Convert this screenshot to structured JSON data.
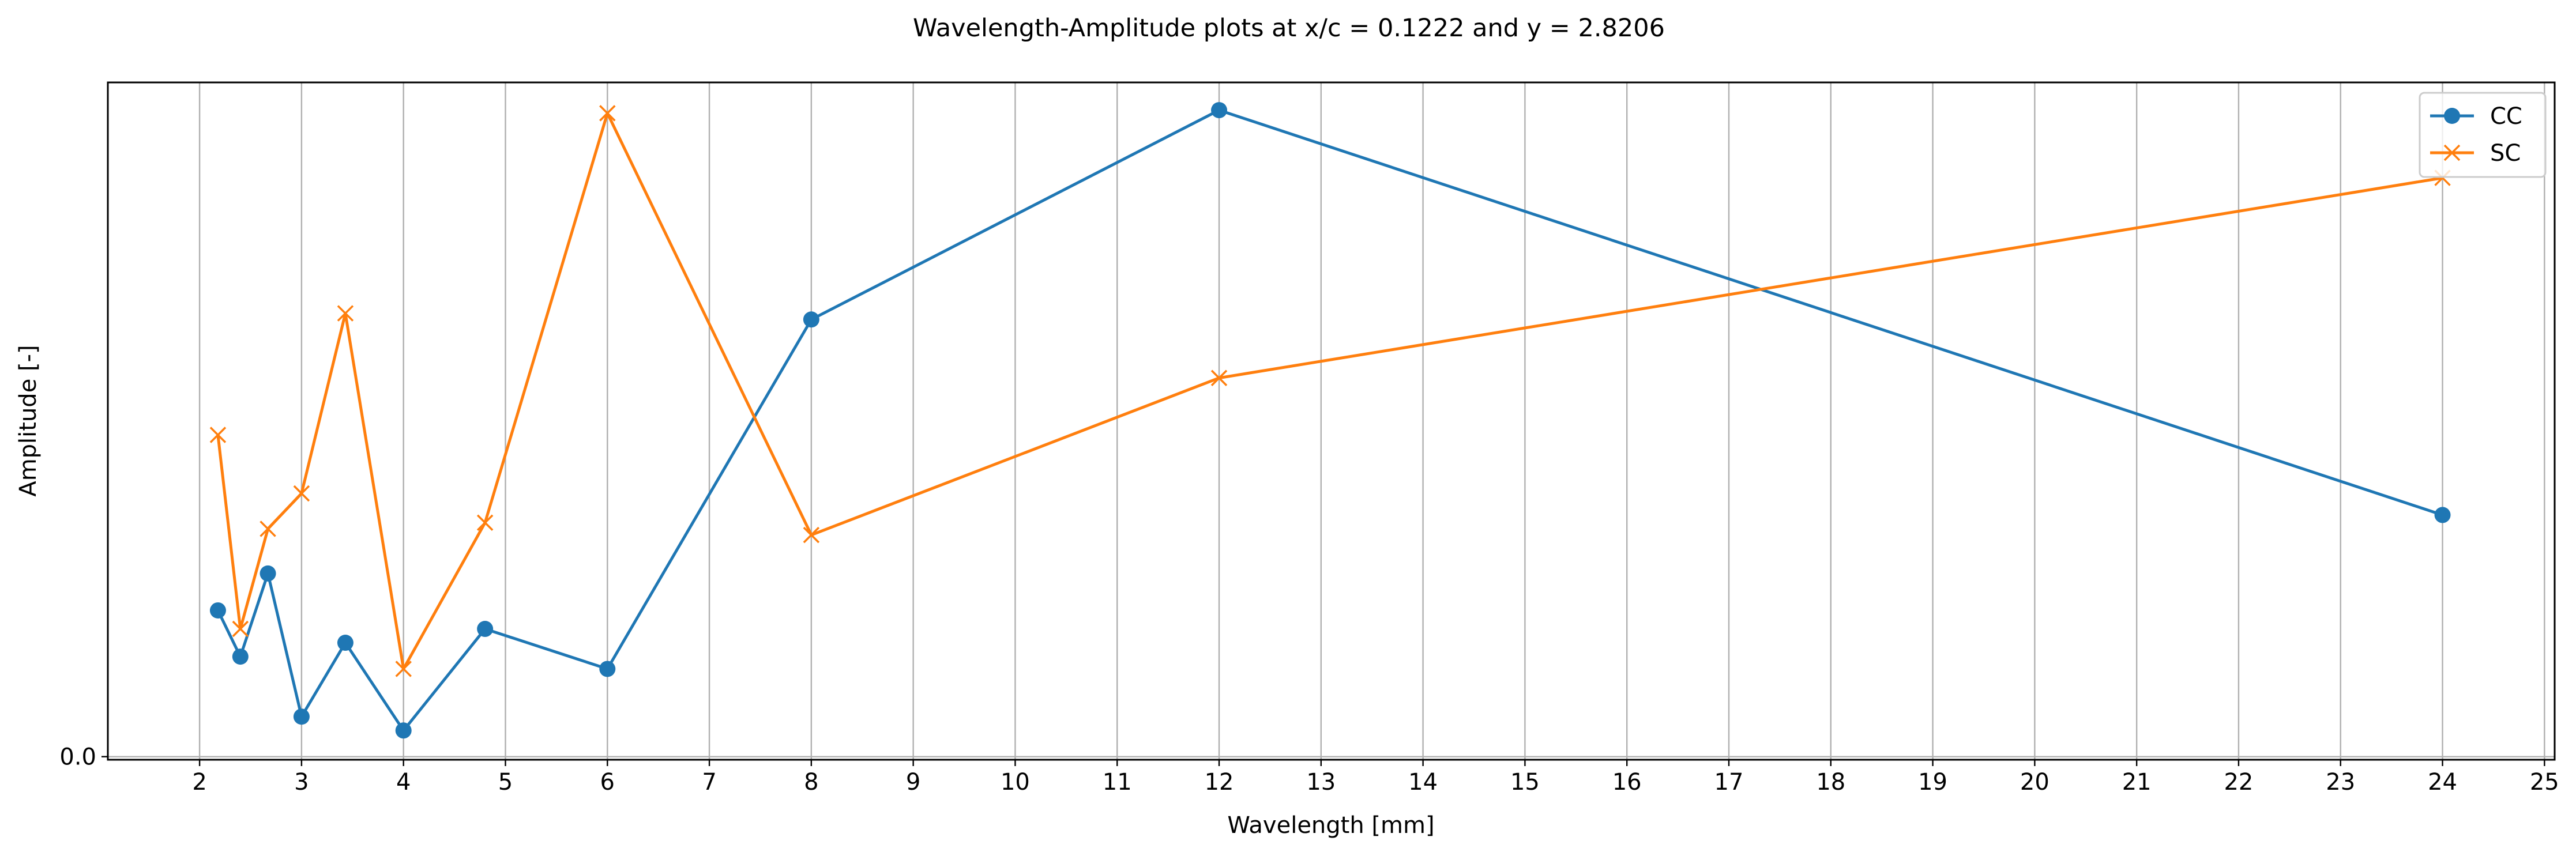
{
  "chart_data": {
    "type": "line",
    "title": "Wavelength-Amplitude plots at x/c = 0.1222 and y = 2.8206",
    "xlabel": "Wavelength [mm]",
    "ylabel": "Amplitude [-]",
    "xlim": [
      1.1,
      25.1
    ],
    "ylim": [
      -0.02,
      4.38
    ],
    "xticks": [
      2,
      3,
      4,
      5,
      6,
      7,
      8,
      9,
      10,
      11,
      12,
      13,
      14,
      15,
      16,
      17,
      18,
      19,
      20,
      21,
      22,
      23,
      24,
      25
    ],
    "yticks": [
      0.0
    ],
    "ytick_labels": [
      "0.0"
    ],
    "grid": "x",
    "legend_position": "top-right",
    "series": [
      {
        "name": "CC",
        "color": "#1f77b4",
        "marker": "circle",
        "x": [
          2.18,
          2.4,
          2.67,
          3.0,
          3.43,
          4.0,
          4.8,
          6.0,
          8.0,
          12.0,
          24.0
        ],
        "y": [
          0.95,
          0.65,
          1.19,
          0.26,
          0.74,
          0.17,
          0.83,
          0.57,
          2.84,
          4.2,
          1.57
        ]
      },
      {
        "name": "SC",
        "color": "#ff7f0e",
        "marker": "x",
        "x": [
          2.18,
          2.4,
          2.67,
          3.0,
          3.43,
          4.0,
          4.8,
          6.0,
          8.0,
          12.0,
          24.0
        ],
        "y": [
          2.09,
          0.83,
          1.48,
          1.71,
          2.88,
          0.57,
          1.52,
          4.18,
          1.44,
          2.46,
          3.76
        ]
      }
    ]
  }
}
